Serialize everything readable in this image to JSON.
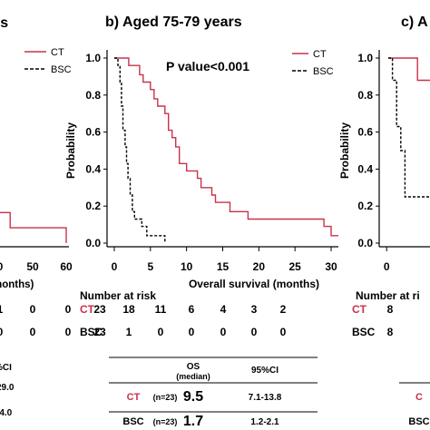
{
  "chart_data": [
    {
      "panel": "left (cropped)",
      "type": "line",
      "title": "",
      "title_visible_fragment": "rs",
      "xlabel_visible_fragment": "months)",
      "ylabel": "",
      "xlim": [
        0,
        60
      ],
      "ylim": [
        0,
        1
      ],
      "x_ticks_visible": [
        "0",
        "50",
        "60"
      ],
      "legend": {
        "placement": "top-right",
        "entries": [
          "CT",
          "BSC"
        ]
      },
      "series": [
        {
          "name": "CT",
          "color": "#c8324a",
          "dash": "solid",
          "x": [
            45,
            47,
            47,
            58,
            58
          ],
          "y": [
            0.17,
            0.17,
            0.09,
            0.09,
            0.01
          ]
        }
      ],
      "risk_table": {
        "rows": [
          {
            "name": "CT",
            "values_visible": [
              "1",
              "0"
            ]
          },
          {
            "name": "BSC",
            "values_visible": [
              "0",
              "0"
            ]
          }
        ]
      },
      "stats_table": {
        "header_fragment": "%CI",
        "rows": [
          {
            "ci_fragment": "29.0"
          },
          {
            "ci_fragment": "-4.0"
          }
        ]
      }
    },
    {
      "panel": "b",
      "type": "line",
      "title": "b) Aged 75-79 years",
      "xlabel": "Overall survival (months)",
      "ylabel": "Probability",
      "annotation": "P value<0.001",
      "xlim": [
        -1,
        31
      ],
      "ylim": [
        0,
        1
      ],
      "x_ticks": [
        0,
        5,
        10,
        15,
        20,
        25,
        30
      ],
      "y_ticks": [
        0.0,
        0.2,
        0.4,
        0.6,
        0.8,
        1.0
      ],
      "y_tick_labels": [
        "0.0",
        "0.2",
        "0.4",
        "0.6",
        "0.8",
        "1.0"
      ],
      "legend": {
        "placement": "top-right",
        "entries": [
          "CT",
          "BSC"
        ]
      },
      "series": [
        {
          "name": "CT",
          "color": "#c8324a",
          "dash": "solid",
          "x": [
            0,
            2.0,
            2.0,
            3.5,
            3.5,
            4.0,
            4.0,
            5.0,
            5.0,
            5.5,
            5.5,
            6.0,
            6.0,
            7.0,
            7.0,
            7.5,
            7.5,
            8.0,
            8.0,
            8.5,
            8.5,
            9.0,
            9.0,
            10.0,
            10.0,
            11.5,
            11.5,
            12.0,
            12.0,
            13.5,
            13.5,
            14.0,
            14.0,
            16.0,
            16.0,
            17.0,
            17.0,
            18.5,
            18.5,
            20.0,
            20.0,
            29.0,
            29.0,
            30.0,
            30.0,
            31.0
          ],
          "y": [
            1.0,
            1.0,
            0.96,
            0.96,
            0.91,
            0.91,
            0.87,
            0.87,
            0.83,
            0.83,
            0.78,
            0.78,
            0.74,
            0.74,
            0.7,
            0.7,
            0.61,
            0.61,
            0.57,
            0.57,
            0.52,
            0.52,
            0.43,
            0.43,
            0.39,
            0.39,
            0.35,
            0.35,
            0.3,
            0.3,
            0.26,
            0.26,
            0.22,
            0.22,
            0.17,
            0.17,
            0.17,
            0.17,
            0.13,
            0.13,
            0.13,
            0.13,
            0.09,
            0.09,
            0.04,
            0.04
          ]
        },
        {
          "name": "BSC",
          "color": "#000000",
          "dash": "dashed",
          "x": [
            0,
            0.5,
            0.5,
            0.8,
            0.8,
            1.0,
            1.0,
            1.2,
            1.2,
            1.5,
            1.5,
            1.7,
            1.7,
            1.9,
            1.9,
            2.2,
            2.2,
            2.5,
            2.5,
            2.8,
            2.8,
            3.2,
            3.2,
            3.8,
            3.8,
            4.5,
            4.5,
            5.5,
            5.5,
            7.0,
            7.0
          ],
          "y": [
            1.0,
            1.0,
            0.96,
            0.96,
            0.87,
            0.87,
            0.74,
            0.74,
            0.61,
            0.61,
            0.52,
            0.52,
            0.43,
            0.43,
            0.35,
            0.35,
            0.26,
            0.26,
            0.17,
            0.17,
            0.13,
            0.13,
            0.13,
            0.13,
            0.09,
            0.09,
            0.04,
            0.04,
            0.04,
            0.04,
            0.0
          ]
        }
      ],
      "risk_table": {
        "title": "Number at risk",
        "rows": [
          {
            "name": "CT",
            "values": [
              "23",
              "18",
              "11",
              "6",
              "4",
              "3",
              "2"
            ]
          },
          {
            "name": "BSC",
            "values": [
              "23",
              "1",
              "0",
              "0",
              "0",
              "0",
              "0"
            ]
          }
        ]
      },
      "stats_table": {
        "header": {
          "os": "OS",
          "median": "(median)",
          "ci": "95%CI"
        },
        "rows": [
          {
            "group": "CT",
            "n": "(n=23)",
            "os": "9.5",
            "ci": "7.1-13.8"
          },
          {
            "group": "BSC",
            "n": "(n=23)",
            "os": "1.7",
            "ci": "1.2-2.1"
          }
        ]
      }
    },
    {
      "panel": "c (cropped)",
      "type": "line",
      "title_visible_fragment": "c) A",
      "xlabel": "",
      "ylabel": "Probability",
      "xlim": [
        -1,
        30
      ],
      "ylim": [
        0,
        1
      ],
      "x_ticks_visible": [
        "0"
      ],
      "y_ticks": [
        0.0,
        0.2,
        0.4,
        0.6,
        0.8,
        1.0
      ],
      "y_tick_labels": [
        "0.0",
        "0.2",
        "0.4",
        "0.6",
        "0.8",
        "1.0"
      ],
      "series": [
        {
          "name": "CT",
          "color": "#c8324a",
          "dash": "solid",
          "x": [
            0,
            3.5,
            3.5,
            5
          ],
          "y": [
            1.0,
            1.0,
            0.88,
            0.88
          ]
        },
        {
          "name": "BSC",
          "color": "#000000",
          "dash": "dashed",
          "x": [
            0,
            0.5,
            0.5,
            1.0,
            1.0,
            1.5,
            1.5,
            2.0,
            2.0,
            5
          ],
          "y": [
            1.0,
            1.0,
            0.88,
            0.88,
            0.63,
            0.63,
            0.5,
            0.5,
            0.25,
            0.25
          ]
        }
      ],
      "risk_table": {
        "title_visible_fragment": "Number at ri",
        "rows": [
          {
            "name": "CT",
            "values_visible": [
              "8"
            ]
          },
          {
            "name": "BSC",
            "values_visible": [
              "8"
            ]
          }
        ]
      },
      "stats_table": {
        "rows_visible": [
          "C",
          "BSC"
        ]
      }
    }
  ]
}
